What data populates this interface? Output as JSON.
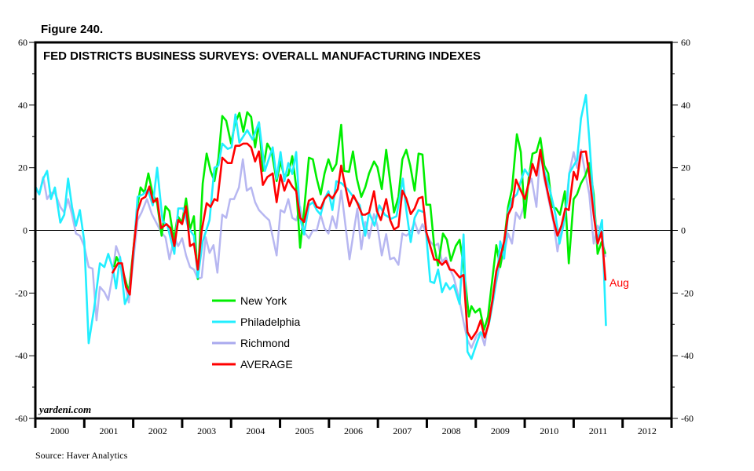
{
  "figure_label": "Figure 240.",
  "source": "Source: Haver Analytics",
  "watermark": "yardeni.com",
  "chart_data": {
    "type": "line",
    "title": "FED DISTRICTS BUSINESS SURVEYS: OVERALL MANUFACTURING INDEXES",
    "xlabel": "",
    "ylabel": "",
    "ylim": [
      -60,
      60
    ],
    "xlim": [
      2000,
      2013
    ],
    "y_ticks": [
      60,
      40,
      20,
      0,
      -20,
      -40,
      -60
    ],
    "x_tick_labels": [
      "2000",
      "2001",
      "2002",
      "2003",
      "2004",
      "2005",
      "2006",
      "2007",
      "2008",
      "2009",
      "2010",
      "2011",
      "2012"
    ],
    "zero_line": true,
    "grid": false,
    "legend_position": "center-left",
    "annotation": "Aug",
    "series": [
      {
        "name": "New York",
        "color": "#00ee00",
        "x": [
          2001.61,
          2001.66,
          2001.73,
          2001.81,
          2001.91,
          2002.0,
          2002.09,
          2002.15,
          2002.23,
          2002.31,
          2002.4,
          2002.49,
          2002.58,
          2002.66,
          2002.74,
          2002.83,
          2002.91,
          2003.0,
          2003.08,
          2003.16,
          2003.24,
          2003.32,
          2003.42,
          2003.5,
          2003.58,
          2003.66,
          2003.74,
          2003.82,
          2003.9,
          2004.0,
          2004.08,
          2004.17,
          2004.25,
          2004.33,
          2004.41,
          2004.49,
          2004.57,
          2004.65,
          2004.74,
          2004.83,
          2004.93,
          2005.01,
          2005.09,
          2005.17,
          2005.25,
          2005.33,
          2005.41,
          2005.49,
          2005.59,
          2005.67,
          2005.75,
          2005.83,
          2005.91,
          2005.99,
          2006.07,
          2006.15,
          2006.25,
          2006.31,
          2006.41,
          2006.49,
          2006.57,
          2006.66,
          2006.74,
          2006.82,
          2006.92,
          2006.99,
          2007.08,
          2007.17,
          2007.25,
          2007.33,
          2007.42,
          2007.5,
          2007.58,
          2007.66,
          2007.75,
          2007.83,
          2007.91,
          2007.99,
          2008.07,
          2008.15,
          2008.23,
          2008.33,
          2008.41,
          2008.49,
          2008.59,
          2008.67,
          2008.75,
          2008.86,
          2008.91,
          2008.99,
          2009.08,
          2009.17,
          2009.25,
          2009.33,
          2009.42,
          2009.5,
          2009.58,
          2009.66,
          2009.74,
          2009.84,
          2009.92,
          2010.0,
          2010.08,
          2010.16,
          2010.24,
          2010.32,
          2010.4,
          2010.48,
          2010.56,
          2010.64,
          2010.72,
          2010.82,
          2010.9,
          2011.0,
          2011.07,
          2011.15,
          2011.24,
          2011.32,
          2011.41,
          2011.49,
          2011.57,
          2011.65
        ],
        "values": [
          -11.7,
          -8.5,
          -11,
          -14.2,
          -19.7,
          -6.7,
          8.2,
          13.7,
          12,
          18.2,
          11.5,
          8.7,
          -1.7,
          7.7,
          6.2,
          -3,
          4.5,
          2.5,
          10.2,
          0.3,
          4.5,
          -15.5,
          15,
          24.5,
          19,
          15.7,
          22.7,
          36.5,
          35,
          27.7,
          34,
          37.5,
          31.5,
          37.7,
          36.2,
          26.5,
          34.5,
          19,
          27.7,
          25.2,
          15.7,
          22,
          17,
          17.7,
          23.7,
          14,
          -5.5,
          6.2,
          23.2,
          22.7,
          16.5,
          11.5,
          18.2,
          22.7,
          19,
          21.2,
          33.7,
          19,
          18.7,
          25.2,
          16.5,
          10.7,
          13.7,
          18.2,
          22,
          20.2,
          13.2,
          25.7,
          15.7,
          5.7,
          10.7,
          22.7,
          25.7,
          20.7,
          12.7,
          24.5,
          24.2,
          8.2,
          8.2,
          -5,
          -11.2,
          -1,
          -3,
          -9.7,
          -5,
          -3,
          -11,
          -27.5,
          -24.2,
          -26.2,
          -25,
          -31.7,
          -27.5,
          -16.7,
          -4.7,
          -11.7,
          -3.5,
          7.5,
          13.2,
          30.7,
          25,
          4,
          16.5,
          24.5,
          25,
          29.5,
          20.7,
          18.2,
          7.5,
          7,
          5,
          12.5,
          -10.5,
          10,
          11.5,
          15,
          17.5,
          21.5,
          11.5,
          -7.5,
          -3.7,
          -7.5
        ]
      },
      {
        "name": "Philadelphia",
        "color": "#22eeff",
        "x": [
          2000.0,
          2000.08,
          2000.16,
          2000.24,
          2000.32,
          2000.4,
          2000.51,
          2000.59,
          2000.67,
          2000.75,
          2000.83,
          2000.91,
          2001.0,
          2001.09,
          2001.2,
          2001.32,
          2001.41,
          2001.49,
          2001.59,
          2001.65,
          2001.73,
          2001.83,
          2001.92,
          2002.0,
          2002.09,
          2002.2,
          2002.3,
          2002.4,
          2002.49,
          2002.6,
          2002.7,
          2002.84,
          2002.92,
          2003.02,
          2003.13,
          2003.24,
          2003.32,
          2003.42,
          2003.56,
          2003.66,
          2003.74,
          2003.82,
          2003.93,
          2004.01,
          2004.09,
          2004.17,
          2004.33,
          2004.44,
          2004.57,
          2004.69,
          2004.85,
          2004.93,
          2005.01,
          2005.09,
          2005.17,
          2005.25,
          2005.33,
          2005.41,
          2005.49,
          2005.59,
          2005.67,
          2005.75,
          2005.83,
          2005.91,
          2005.99,
          2006.07,
          2006.15,
          2006.26,
          2006.39,
          2006.53,
          2006.63,
          2006.74,
          2006.82,
          2006.93,
          2007.03,
          2007.14,
          2007.27,
          2007.38,
          2007.51,
          2007.58,
          2007.67,
          2007.75,
          2007.83,
          2007.95,
          2008.07,
          2008.15,
          2008.23,
          2008.31,
          2008.39,
          2008.47,
          2008.55,
          2008.67,
          2008.75,
          2008.83,
          2008.91,
          2009.02,
          2009.1,
          2009.18,
          2009.28,
          2009.36,
          2009.44,
          2009.5,
          2009.58,
          2009.66,
          2009.74,
          2009.84,
          2009.92,
          2010.0,
          2010.08,
          2010.16,
          2010.24,
          2010.32,
          2010.4,
          2010.51,
          2010.63,
          2010.71,
          2010.79,
          2010.87,
          2010.91,
          2011.0,
          2011.07,
          2011.15,
          2011.25,
          2011.32,
          2011.4,
          2011.48,
          2011.53,
          2011.58,
          2011.66
        ],
        "values": [
          14,
          11.5,
          16.5,
          19,
          10,
          13.7,
          2.5,
          5,
          16.5,
          7.5,
          1.5,
          6.5,
          -3.5,
          -36,
          -25,
          -10.5,
          -11.7,
          -7.5,
          -12.5,
          -18.5,
          -8.5,
          -23.5,
          -20,
          -8.5,
          10.7,
          11.5,
          13,
          8,
          20,
          3,
          1.5,
          -7.5,
          7,
          7,
          0.7,
          -1.7,
          -15,
          -3.5,
          3.3,
          20,
          20.7,
          27.7,
          26,
          26.5,
          37,
          28,
          32,
          29,
          34.5,
          19,
          26.5,
          16.5,
          25,
          15.7,
          21.5,
          18,
          25,
          4,
          -1.3,
          8,
          9,
          6.5,
          5,
          10,
          12.5,
          6.5,
          15.7,
          15,
          13,
          10,
          8,
          -1.7,
          5.7,
          1.5,
          8,
          5,
          3.7,
          4.5,
          16.5,
          6.5,
          -3.7,
          4,
          6.5,
          5.7,
          -16.3,
          -16.8,
          -12.5,
          -19.7,
          -16.8,
          -18.8,
          -17.5,
          -23.5,
          -1.3,
          -38.7,
          -41,
          -36,
          -32.5,
          -34,
          -29,
          -22,
          -14,
          -3.5,
          -9,
          5.7,
          10,
          11.5,
          15.7,
          19.5,
          17.5,
          20.7,
          18.2,
          24,
          19,
          13.2,
          5,
          -4.2,
          1.5,
          10,
          18.2,
          20.7,
          22.5,
          35.7,
          43.2,
          29,
          10.7,
          -4.2,
          0,
          3.3,
          -30.5
        ]
      },
      {
        "name": "Richmond",
        "color": "#aaaaee",
        "x": [
          2000.0,
          2000.08,
          2000.16,
          2000.24,
          2000.32,
          2000.4,
          2000.51,
          2000.59,
          2000.67,
          2000.75,
          2000.83,
          2000.91,
          2001.0,
          2001.09,
          2001.17,
          2001.25,
          2001.32,
          2001.41,
          2001.49,
          2001.57,
          2001.65,
          2001.73,
          2001.81,
          2001.91,
          2002.0,
          2002.09,
          2002.17,
          2002.28,
          2002.38,
          2002.47,
          2002.57,
          2002.66,
          2002.74,
          2002.84,
          2002.92,
          2003.0,
          2003.08,
          2003.16,
          2003.24,
          2003.32,
          2003.4,
          2003.48,
          2003.56,
          2003.64,
          2003.72,
          2003.82,
          2003.9,
          2003.98,
          2004.06,
          2004.16,
          2004.24,
          2004.32,
          2004.41,
          2004.49,
          2004.57,
          2004.69,
          2004.78,
          2004.93,
          2005.01,
          2005.09,
          2005.17,
          2005.25,
          2005.33,
          2005.41,
          2005.49,
          2005.59,
          2005.67,
          2005.75,
          2005.83,
          2005.91,
          2005.99,
          2006.07,
          2006.15,
          2006.25,
          2006.31,
          2006.42,
          2006.5,
          2006.58,
          2006.66,
          2006.74,
          2006.82,
          2006.92,
          2006.99,
          2007.08,
          2007.17,
          2007.25,
          2007.33,
          2007.42,
          2007.5,
          2007.58,
          2007.67,
          2007.75,
          2007.83,
          2007.91,
          2007.99,
          2008.07,
          2008.15,
          2008.23,
          2008.31,
          2008.39,
          2008.47,
          2008.55,
          2008.67,
          2008.75,
          2008.83,
          2008.91,
          2009.02,
          2009.1,
          2009.18,
          2009.26,
          2009.36,
          2009.47,
          2009.58,
          2009.66,
          2009.74,
          2009.82,
          2009.9,
          2009.98,
          2010.06,
          2010.14,
          2010.24,
          2010.32,
          2010.4,
          2010.5,
          2010.59,
          2010.67,
          2010.75,
          2010.83,
          2010.91,
          2011.0,
          2011.07,
          2011.15,
          2011.24,
          2011.32,
          2011.41,
          2011.49,
          2011.57,
          2011.65
        ],
        "values": [
          13.2,
          11.5,
          17,
          10,
          12,
          12,
          7.5,
          5.7,
          10,
          5,
          -1,
          -1.7,
          -5,
          -11.7,
          -12.2,
          -28.7,
          -18,
          -19.7,
          -22.2,
          -15,
          -5,
          -8.5,
          -15,
          -23,
          -10,
          3.3,
          5.7,
          10,
          5.2,
          2.5,
          -0.5,
          -2.2,
          -9.2,
          -2.2,
          -5,
          -2.5,
          -8,
          -11.7,
          -12.5,
          -15.5,
          -15,
          -2.2,
          -7.2,
          -4.7,
          -13.5,
          5,
          4,
          10,
          10,
          13.7,
          22.7,
          12.7,
          13.7,
          9,
          6.5,
          4.5,
          3.2,
          -8,
          6.5,
          5.7,
          10,
          4,
          3.2,
          7.5,
          -0.5,
          -2.5,
          0,
          0,
          5,
          0.7,
          -1,
          4.5,
          0.7,
          12.7,
          5,
          -9.2,
          -1,
          7,
          -6,
          2.7,
          -2.5,
          5.2,
          1.5,
          -8,
          -1.2,
          -9.2,
          -8.7,
          -11,
          -1,
          -1.7,
          -0.5,
          2.7,
          -1,
          2,
          -1,
          -3.5,
          -5,
          -4.2,
          -10,
          -8.7,
          -12.2,
          -15,
          -22.5,
          -29.2,
          -35,
          -37.5,
          -33.5,
          -32.5,
          -36.7,
          -28.5,
          -21,
          -12.5,
          -7.5,
          -1,
          -4.2,
          5.7,
          3.7,
          7.5,
          14,
          16.5,
          7.5,
          25.7,
          16.5,
          9,
          2.5,
          -6.7,
          0.7,
          5.7,
          18.2,
          25,
          20,
          25.7,
          18.2,
          11.5,
          -4.2,
          1.5,
          -1,
          -8.5
        ]
      },
      {
        "name": "AVERAGE",
        "color": "#ff0000",
        "x": [
          2001.57,
          2001.69,
          2001.77,
          2001.85,
          2001.93,
          2002.0,
          2002.09,
          2002.17,
          2002.25,
          2002.33,
          2002.41,
          2002.49,
          2002.57,
          2002.68,
          2002.76,
          2002.84,
          2002.92,
          2003.0,
          2003.08,
          2003.16,
          2003.24,
          2003.32,
          2003.4,
          2003.5,
          2003.58,
          2003.66,
          2003.72,
          2003.82,
          2003.93,
          2004.01,
          2004.09,
          2004.17,
          2004.25,
          2004.33,
          2004.41,
          2004.49,
          2004.57,
          2004.65,
          2004.74,
          2004.85,
          2004.93,
          2005.01,
          2005.09,
          2005.17,
          2005.25,
          2005.33,
          2005.41,
          2005.49,
          2005.59,
          2005.67,
          2005.75,
          2005.83,
          2005.91,
          2005.99,
          2006.07,
          2006.18,
          2006.25,
          2006.31,
          2006.42,
          2006.5,
          2006.58,
          2006.68,
          2006.74,
          2006.82,
          2006.92,
          2006.98,
          2007.06,
          2007.17,
          2007.25,
          2007.33,
          2007.42,
          2007.5,
          2007.58,
          2007.67,
          2007.75,
          2007.83,
          2007.91,
          2007.99,
          2008.07,
          2008.15,
          2008.23,
          2008.31,
          2008.39,
          2008.47,
          2008.55,
          2008.67,
          2008.75,
          2008.83,
          2008.91,
          2009.02,
          2009.1,
          2009.18,
          2009.26,
          2009.34,
          2009.42,
          2009.5,
          2009.58,
          2009.66,
          2009.74,
          2009.82,
          2009.92,
          2010.0,
          2010.08,
          2010.16,
          2010.24,
          2010.32,
          2010.4,
          2010.5,
          2010.59,
          2010.67,
          2010.75,
          2010.83,
          2010.9,
          2011.0,
          2011.07,
          2011.15,
          2011.25,
          2011.33,
          2011.41,
          2011.49,
          2011.57,
          2011.65
        ],
        "values": [
          -13.7,
          -10.5,
          -10.5,
          -18,
          -20.5,
          -6.7,
          6.2,
          10,
          10.7,
          14,
          9,
          10.2,
          0.7,
          2,
          0.7,
          -5,
          3.3,
          2,
          7.7,
          -5,
          -4.2,
          -12.5,
          0,
          8.7,
          7.5,
          10,
          9.5,
          23.2,
          21.5,
          21.5,
          27,
          27,
          27.7,
          27.7,
          26.5,
          22,
          25.2,
          14.5,
          17,
          18.2,
          9,
          17.7,
          12.7,
          16.2,
          14,
          12.5,
          4,
          2.7,
          9.5,
          10.2,
          7.5,
          7,
          10,
          11.5,
          10.2,
          13.2,
          20.7,
          15.7,
          7.7,
          11.2,
          8.7,
          5,
          5,
          5.7,
          12.5,
          6.2,
          3.3,
          10,
          3.3,
          0.3,
          1.2,
          12.7,
          10.2,
          5.2,
          7,
          10.2,
          10.7,
          -0.5,
          -5,
          -9.3,
          -9.5,
          -11,
          -9.7,
          -12.5,
          -12.7,
          -15,
          -14.2,
          -32.5,
          -34.7,
          -32.2,
          -28.7,
          -34.2,
          -30,
          -22.2,
          -13,
          -8.7,
          -3.5,
          5,
          7.5,
          16.2,
          12.7,
          10,
          15,
          21.2,
          17.5,
          25.7,
          17.5,
          10,
          3.3,
          -1.7,
          1.5,
          7,
          6.5,
          18.7,
          16.2,
          25,
          25.2,
          16.5,
          5,
          -4.2,
          -0.5,
          -16
        ]
      }
    ]
  }
}
